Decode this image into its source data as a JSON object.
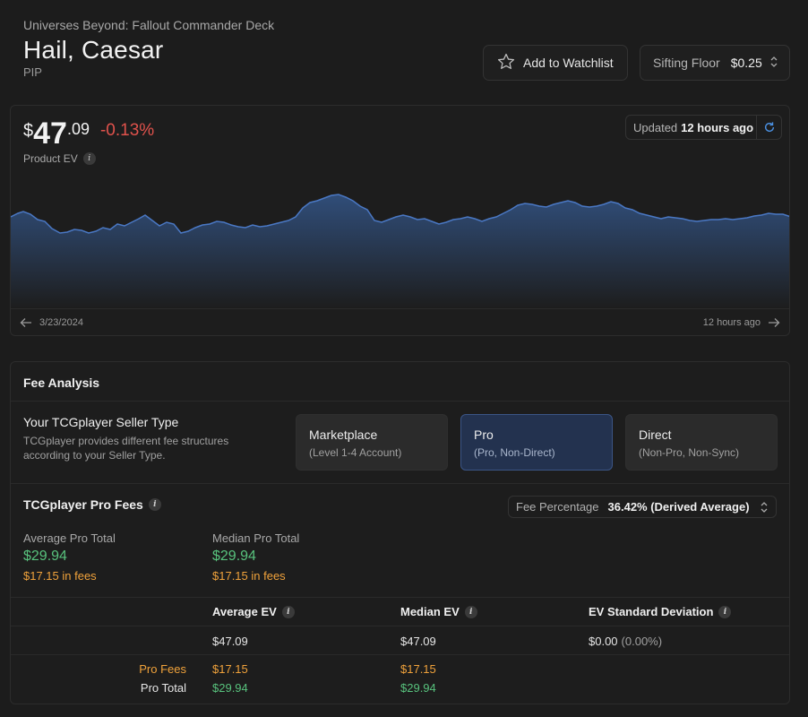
{
  "header": {
    "subtitle": "Universes Beyond: Fallout Commander Deck",
    "title": "Hail, Caesar",
    "set_code": "PIP"
  },
  "watchlist": {
    "label": "Add to Watchlist",
    "icon": "star-icon"
  },
  "sifting_floor": {
    "label": "Sifting Floor",
    "value": "$0.25"
  },
  "price": {
    "currency": "$",
    "integer": "47",
    "decimal": ".09",
    "change": "-0.13%",
    "label": "Product EV"
  },
  "updated": {
    "prefix": "Updated",
    "time": "12 hours ago"
  },
  "chart": {
    "start_label": "3/23/2024",
    "end_label": "12 hours ago",
    "line_color": "#4a78c4",
    "fill_color": "#2e4a74"
  },
  "fee_analysis": {
    "title": "Fee Analysis",
    "seller_type_title": "Your TCGplayer Seller Type",
    "seller_type_desc": "TCGplayer provides different fee structures according to your Seller Type.",
    "options": [
      {
        "title": "Marketplace",
        "sub": "(Level 1-4 Account)",
        "active": false
      },
      {
        "title": "Pro",
        "sub": "(Pro, Non-Direct)",
        "active": true
      },
      {
        "title": "Direct",
        "sub": "(Non-Pro, Non-Sync)",
        "active": false
      }
    ],
    "pro_fees_title": "TCGplayer Pro Fees",
    "fee_percentage": {
      "label": "Fee Percentage",
      "value": "36.42% (Derived Average)"
    },
    "average_total": {
      "label": "Average Pro Total",
      "value": "$29.94",
      "fees": "$17.15 in fees"
    },
    "median_total": {
      "label": "Median Pro Total",
      "value": "$29.94",
      "fees": "$17.15 in fees"
    },
    "table": {
      "headers": [
        "Average EV",
        "Median EV",
        "EV Standard Deviation"
      ],
      "values": [
        "$47.09",
        "$47.09",
        "$0.00"
      ],
      "std_pct": "(0.00%)",
      "pro_fees_label": "Pro Fees",
      "pro_total_label": "Pro Total",
      "avg_fees": "$17.15",
      "avg_total": "$29.94",
      "med_fees": "$17.15",
      "med_total": "$29.94"
    }
  }
}
